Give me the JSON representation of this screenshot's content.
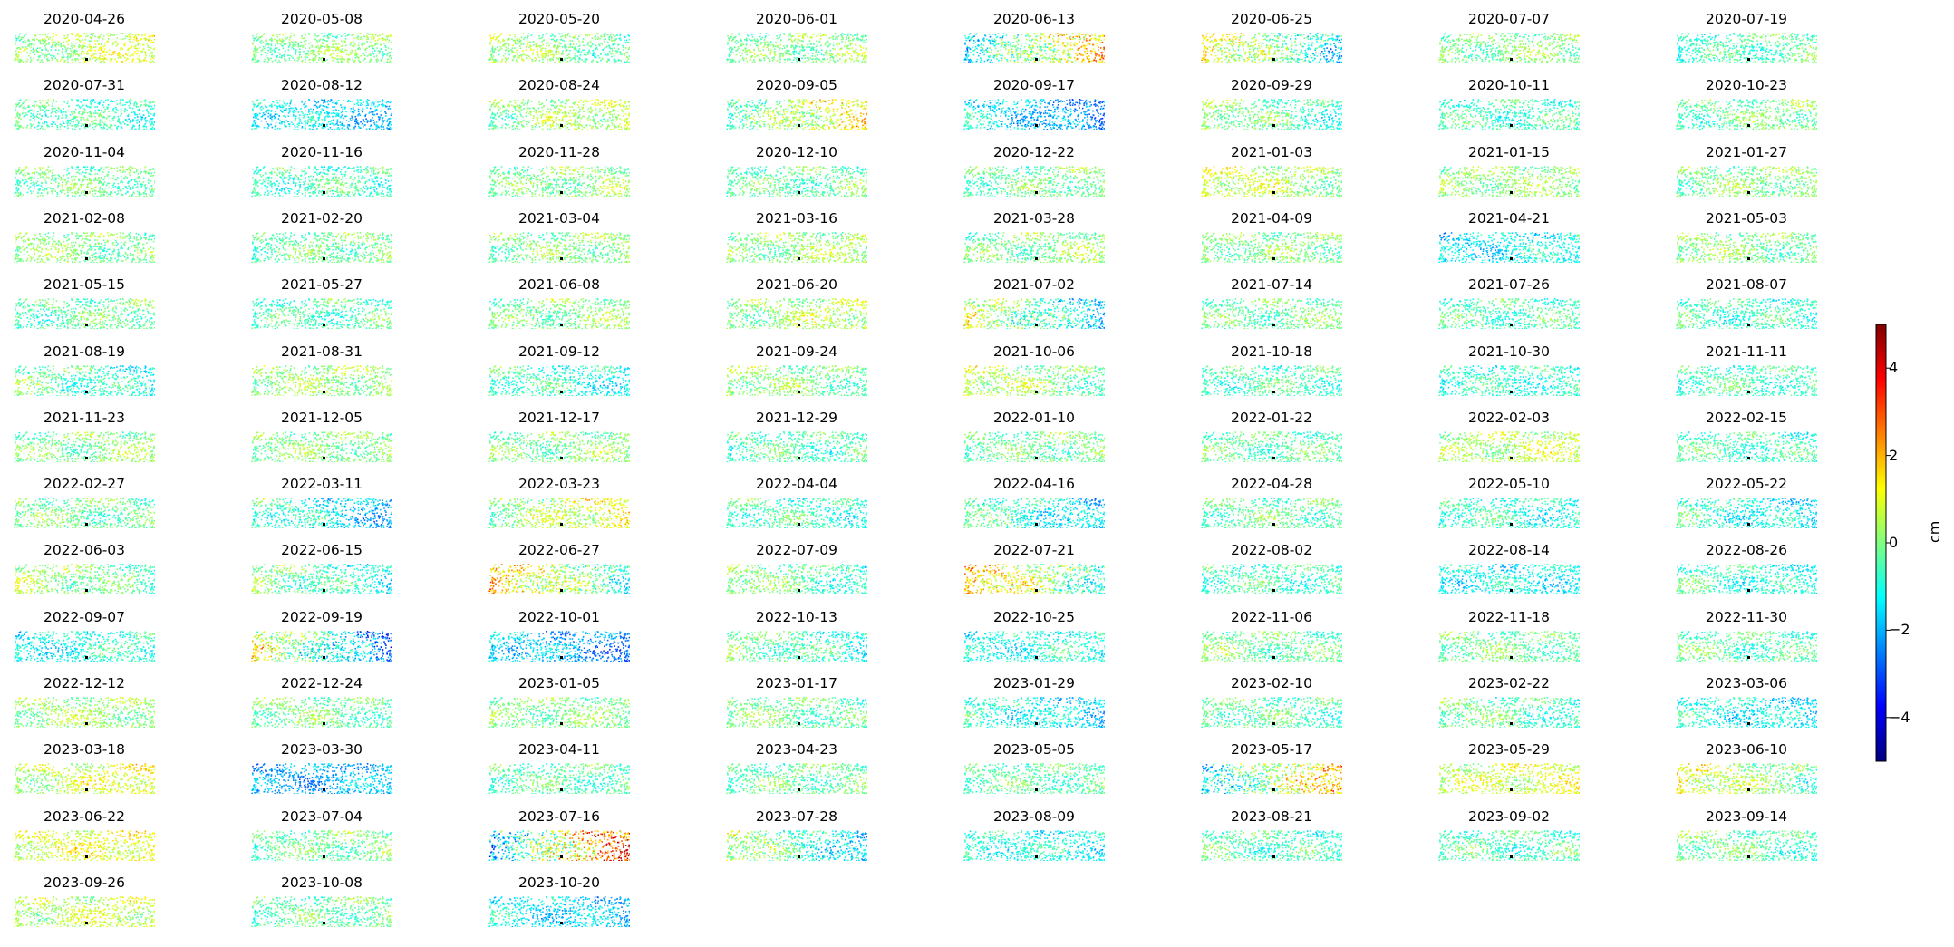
{
  "chart_data": {
    "type": "heatmap",
    "layout": "small-multiples grid of scatter maps",
    "columns": 8,
    "colormap": "jet",
    "colorbar": {
      "label": "cm",
      "range": [
        -5,
        5
      ],
      "ticks": [
        4,
        2,
        0,
        -2,
        -4
      ],
      "tick_labels": [
        "4",
        "2",
        "0",
        "−2",
        "−4"
      ],
      "colors": [
        "#00007f",
        "#0000ff",
        "#007fff",
        "#00ffff",
        "#7fff7f",
        "#ffff00",
        "#ff7f00",
        "#ff0000",
        "#7f0000"
      ]
    },
    "reference_marker": "black",
    "panels": [
      {
        "title": "2020-04-26",
        "mean": 0.5,
        "gradient": 0.8
      },
      {
        "title": "2020-05-08",
        "mean": 0.0,
        "gradient": 0.3
      },
      {
        "title": "2020-05-20",
        "mean": 0.0,
        "gradient": -0.6
      },
      {
        "title": "2020-06-01",
        "mean": 0.0,
        "gradient": 0.3
      },
      {
        "title": "2020-06-13",
        "mean": 0.3,
        "gradient": 2.5
      },
      {
        "title": "2020-06-25",
        "mean": 0.0,
        "gradient": -2.0
      },
      {
        "title": "2020-07-07",
        "mean": 0.0,
        "gradient": 0.2
      },
      {
        "title": "2020-07-19",
        "mean": -0.5,
        "gradient": 0.5
      },
      {
        "title": "2020-07-31",
        "mean": -0.6,
        "gradient": -0.4
      },
      {
        "title": "2020-08-12",
        "mean": -1.5,
        "gradient": -0.5
      },
      {
        "title": "2020-08-24",
        "mean": 0.3,
        "gradient": 0.5
      },
      {
        "title": "2020-09-05",
        "mean": 0.5,
        "gradient": 1.5
      },
      {
        "title": "2020-09-17",
        "mean": -1.8,
        "gradient": -1.0
      },
      {
        "title": "2020-09-29",
        "mean": -0.3,
        "gradient": -0.8
      },
      {
        "title": "2020-10-11",
        "mean": -0.6,
        "gradient": 0.0
      },
      {
        "title": "2020-10-23",
        "mean": -0.2,
        "gradient": 0.4
      },
      {
        "title": "2020-11-04",
        "mean": -0.2,
        "gradient": 0.0
      },
      {
        "title": "2020-11-16",
        "mean": -0.6,
        "gradient": 0.0
      },
      {
        "title": "2020-11-28",
        "mean": 0.0,
        "gradient": 0.3
      },
      {
        "title": "2020-12-10",
        "mean": -0.3,
        "gradient": 0.2
      },
      {
        "title": "2020-12-22",
        "mean": -0.2,
        "gradient": 0.3
      },
      {
        "title": "2021-01-03",
        "mean": 0.5,
        "gradient": -0.6
      },
      {
        "title": "2021-01-15",
        "mean": 0.2,
        "gradient": 0.0
      },
      {
        "title": "2021-01-27",
        "mean": 0.0,
        "gradient": 0.2
      },
      {
        "title": "2021-02-08",
        "mean": 0.0,
        "gradient": -0.3
      },
      {
        "title": "2021-02-20",
        "mean": -0.2,
        "gradient": 0.3
      },
      {
        "title": "2021-03-04",
        "mean": 0.0,
        "gradient": 0.2
      },
      {
        "title": "2021-03-16",
        "mean": 0.2,
        "gradient": 0.3
      },
      {
        "title": "2021-03-28",
        "mean": 0.0,
        "gradient": 0.3
      },
      {
        "title": "2021-04-09",
        "mean": 0.0,
        "gradient": 0.0
      },
      {
        "title": "2021-04-21",
        "mean": -1.3,
        "gradient": 0.4
      },
      {
        "title": "2021-05-03",
        "mean": 0.0,
        "gradient": -0.3
      },
      {
        "title": "2021-05-15",
        "mean": -0.3,
        "gradient": 0.3
      },
      {
        "title": "2021-05-27",
        "mean": -0.5,
        "gradient": 0.2
      },
      {
        "title": "2021-06-08",
        "mean": 0.0,
        "gradient": 0.3
      },
      {
        "title": "2021-06-20",
        "mean": 0.3,
        "gradient": 0.5
      },
      {
        "title": "2021-07-02",
        "mean": -0.4,
        "gradient": -1.8
      },
      {
        "title": "2021-07-14",
        "mean": -0.2,
        "gradient": 0.2
      },
      {
        "title": "2021-07-26",
        "mean": -0.5,
        "gradient": 0.0
      },
      {
        "title": "2021-08-07",
        "mean": -0.6,
        "gradient": -0.3
      },
      {
        "title": "2021-08-19",
        "mean": -0.6,
        "gradient": -0.8
      },
      {
        "title": "2021-08-31",
        "mean": 0.2,
        "gradient": 0.0
      },
      {
        "title": "2021-09-12",
        "mean": -0.8,
        "gradient": -0.6
      },
      {
        "title": "2021-09-24",
        "mean": 0.0,
        "gradient": -0.5
      },
      {
        "title": "2021-10-06",
        "mean": 0.2,
        "gradient": -0.8
      },
      {
        "title": "2021-10-18",
        "mean": -0.5,
        "gradient": 0.0
      },
      {
        "title": "2021-10-30",
        "mean": -0.8,
        "gradient": 0.0
      },
      {
        "title": "2021-11-11",
        "mean": -0.6,
        "gradient": 0.0
      },
      {
        "title": "2021-11-23",
        "mean": 0.0,
        "gradient": 0.3
      },
      {
        "title": "2021-12-05",
        "mean": 0.0,
        "gradient": 0.0
      },
      {
        "title": "2021-12-17",
        "mean": 0.0,
        "gradient": 0.2
      },
      {
        "title": "2021-12-29",
        "mean": -0.5,
        "gradient": 0.0
      },
      {
        "title": "2022-01-10",
        "mean": -0.2,
        "gradient": 0.2
      },
      {
        "title": "2022-01-22",
        "mean": -0.3,
        "gradient": 0.0
      },
      {
        "title": "2022-02-03",
        "mean": 0.5,
        "gradient": 0.3
      },
      {
        "title": "2022-02-15",
        "mean": -0.6,
        "gradient": -0.2
      },
      {
        "title": "2022-02-27",
        "mean": -0.2,
        "gradient": -0.2
      },
      {
        "title": "2022-03-11",
        "mean": -1.2,
        "gradient": -1.2
      },
      {
        "title": "2022-03-23",
        "mean": 0.6,
        "gradient": 1.0
      },
      {
        "title": "2022-04-04",
        "mean": -0.6,
        "gradient": -0.4
      },
      {
        "title": "2022-04-16",
        "mean": -1.0,
        "gradient": -1.0
      },
      {
        "title": "2022-04-28",
        "mean": -0.3,
        "gradient": 0.0
      },
      {
        "title": "2022-05-10",
        "mean": -0.8,
        "gradient": -0.3
      },
      {
        "title": "2022-05-22",
        "mean": -1.0,
        "gradient": -0.8
      },
      {
        "title": "2022-06-03",
        "mean": 0.0,
        "gradient": -0.8
      },
      {
        "title": "2022-06-15",
        "mean": -0.5,
        "gradient": -1.0
      },
      {
        "title": "2022-06-27",
        "mean": 0.5,
        "gradient": -2.0
      },
      {
        "title": "2022-07-09",
        "mean": -0.3,
        "gradient": -0.8
      },
      {
        "title": "2022-07-21",
        "mean": 0.6,
        "gradient": -2.0
      },
      {
        "title": "2022-08-02",
        "mean": -0.6,
        "gradient": 0.0
      },
      {
        "title": "2022-08-14",
        "mean": -1.2,
        "gradient": 0.0
      },
      {
        "title": "2022-08-26",
        "mean": -0.8,
        "gradient": -0.5
      },
      {
        "title": "2022-09-07",
        "mean": -1.0,
        "gradient": 0.5
      },
      {
        "title": "2022-09-19",
        "mean": -0.8,
        "gradient": -2.5
      },
      {
        "title": "2022-10-01",
        "mean": -2.0,
        "gradient": -0.8
      },
      {
        "title": "2022-10-13",
        "mean": -0.5,
        "gradient": -0.8
      },
      {
        "title": "2022-10-25",
        "mean": -1.0,
        "gradient": 0.2
      },
      {
        "title": "2022-11-06",
        "mean": -0.2,
        "gradient": -0.3
      },
      {
        "title": "2022-11-18",
        "mean": -0.2,
        "gradient": -0.2
      },
      {
        "title": "2022-11-30",
        "mean": -0.4,
        "gradient": -0.2
      },
      {
        "title": "2022-12-12",
        "mean": 0.2,
        "gradient": 0.0
      },
      {
        "title": "2022-12-24",
        "mean": -0.2,
        "gradient": -0.3
      },
      {
        "title": "2023-01-05",
        "mean": 0.0,
        "gradient": 0.0
      },
      {
        "title": "2023-01-17",
        "mean": -0.2,
        "gradient": -0.3
      },
      {
        "title": "2023-01-29",
        "mean": -1.2,
        "gradient": -0.8
      },
      {
        "title": "2023-02-10",
        "mean": -0.4,
        "gradient": -0.3
      },
      {
        "title": "2023-02-22",
        "mean": -0.4,
        "gradient": -0.6
      },
      {
        "title": "2023-03-06",
        "mean": -1.2,
        "gradient": -0.5
      },
      {
        "title": "2023-03-18",
        "mean": 0.8,
        "gradient": 0.6
      },
      {
        "title": "2023-03-30",
        "mean": -2.0,
        "gradient": 0.3
      },
      {
        "title": "2023-04-11",
        "mean": -0.4,
        "gradient": 0.0
      },
      {
        "title": "2023-04-23",
        "mean": -0.3,
        "gradient": 0.2
      },
      {
        "title": "2023-05-05",
        "mean": -0.4,
        "gradient": 0.0
      },
      {
        "title": "2023-05-17",
        "mean": 0.3,
        "gradient": 2.5
      },
      {
        "title": "2023-05-29",
        "mean": 0.8,
        "gradient": 0.3
      },
      {
        "title": "2023-06-10",
        "mean": 0.4,
        "gradient": -1.2
      },
      {
        "title": "2023-06-22",
        "mean": 1.0,
        "gradient": 0.3
      },
      {
        "title": "2023-07-04",
        "mean": -0.2,
        "gradient": 0.3
      },
      {
        "title": "2023-07-16",
        "mean": 0.8,
        "gradient": 3.5
      },
      {
        "title": "2023-07-28",
        "mean": -0.6,
        "gradient": -1.5
      },
      {
        "title": "2023-08-09",
        "mean": -1.0,
        "gradient": -0.3
      },
      {
        "title": "2023-08-21",
        "mean": -0.5,
        "gradient": -0.3
      },
      {
        "title": "2023-09-02",
        "mean": -0.5,
        "gradient": 0.0
      },
      {
        "title": "2023-09-14",
        "mean": -0.3,
        "gradient": -0.5
      },
      {
        "title": "2023-09-26",
        "mean": 0.6,
        "gradient": 0.2
      },
      {
        "title": "2023-10-08",
        "mean": -0.3,
        "gradient": 0.2
      },
      {
        "title": "2023-10-20",
        "mean": -1.5,
        "gradient": -0.6
      }
    ]
  }
}
